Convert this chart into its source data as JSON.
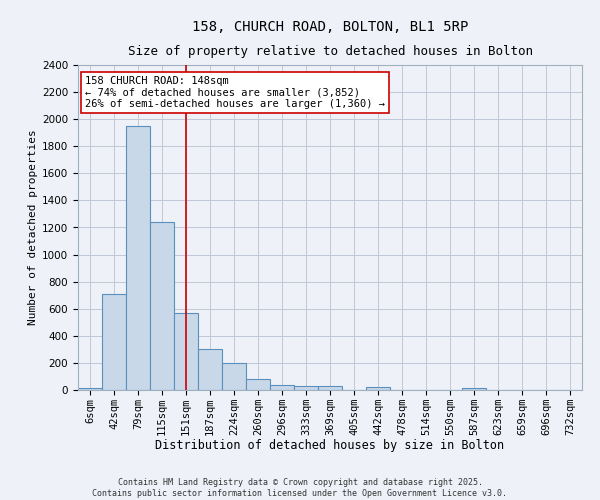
{
  "title_line1": "158, CHURCH ROAD, BOLTON, BL1 5RP",
  "title_line2": "Size of property relative to detached houses in Bolton",
  "xlabel": "Distribution of detached houses by size in Bolton",
  "ylabel": "Number of detached properties",
  "bar_labels": [
    "6sqm",
    "42sqm",
    "79sqm",
    "115sqm",
    "151sqm",
    "187sqm",
    "224sqm",
    "260sqm",
    "296sqm",
    "333sqm",
    "369sqm",
    "405sqm",
    "442sqm",
    "478sqm",
    "514sqm",
    "550sqm",
    "587sqm",
    "623sqm",
    "659sqm",
    "696sqm",
    "732sqm"
  ],
  "bar_heights": [
    15,
    710,
    1950,
    1240,
    570,
    305,
    200,
    80,
    40,
    30,
    30,
    0,
    25,
    0,
    0,
    0,
    15,
    0,
    0,
    0,
    0
  ],
  "bar_color": "#c8d8e8",
  "bar_edge_color": "#5a8fc0",
  "bar_edge_width": 0.8,
  "grid_color": "#c0c8d8",
  "bg_color": "#eef2f8",
  "ylim": [
    0,
    2400
  ],
  "yticks": [
    0,
    200,
    400,
    600,
    800,
    1000,
    1200,
    1400,
    1600,
    1800,
    2000,
    2200,
    2400
  ],
  "property_line_x": 4.5,
  "property_line_color": "#cc0000",
  "annotation_text": "158 CHURCH ROAD: 148sqm\n← 74% of detached houses are smaller (3,852)\n26% of semi-detached houses are larger (1,360) →",
  "annotation_box_color": "#cc0000",
  "annotation_bg": "white",
  "footer_text": "Contains HM Land Registry data © Crown copyright and database right 2025.\nContains public sector information licensed under the Open Government Licence v3.0.",
  "title_fontsize": 10,
  "subtitle_fontsize": 9,
  "tick_fontsize": 7.5,
  "annot_fontsize": 7.5,
  "ylabel_fontsize": 8,
  "xlabel_fontsize": 8.5
}
